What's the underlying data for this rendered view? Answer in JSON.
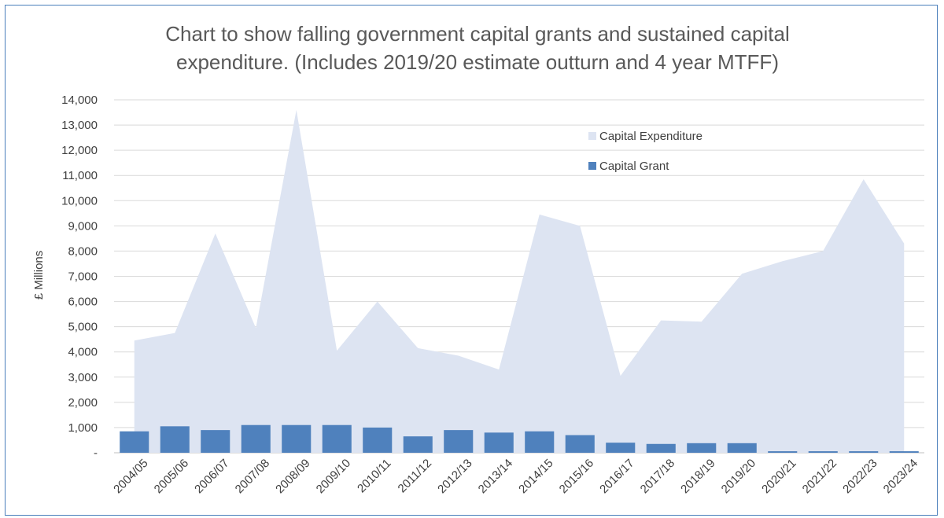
{
  "chart_data": {
    "type": "bar",
    "title_lines": [
      "Chart to show falling government capital grants and sustained capital",
      "expenditure. (Includes 2019/20 estimate outturn and 4 year MTFF)"
    ],
    "xlabel": "",
    "ylabel": "£ Millions",
    "ylim": [
      0,
      14000
    ],
    "yticks": [
      0,
      1000,
      2000,
      3000,
      4000,
      5000,
      6000,
      7000,
      8000,
      9000,
      10000,
      11000,
      12000,
      13000,
      14000
    ],
    "ytick_labels": [
      "-",
      "1,000",
      "2,000",
      "3,000",
      "4,000",
      "5,000",
      "6,000",
      "7,000",
      "8,000",
      "9,000",
      "10,000",
      "11,000",
      "12,000",
      "13,000",
      "14,000"
    ],
    "grid": true,
    "legend_position": "top-right",
    "categories": [
      "2004/05",
      "2005/06",
      "2006/07",
      "2007/08",
      "2008/09",
      "2009/10",
      "2010/11",
      "2011/12",
      "2012/13",
      "2013/14",
      "2014/15",
      "2015/16",
      "2016/17",
      "2017/18",
      "2018/19",
      "2019/20",
      "2020/21",
      "2021/22",
      "2022/23",
      "2023/24"
    ],
    "series": [
      {
        "name": "Capital Expenditure",
        "kind": "area",
        "color": "#dde4f2",
        "values": [
          4450,
          4750,
          8700,
          4950,
          13600,
          4050,
          6000,
          4150,
          3850,
          3300,
          9450,
          9000,
          3050,
          5250,
          5200,
          7100,
          7600,
          8000,
          10850,
          8300
        ]
      },
      {
        "name": "Capital Grant",
        "kind": "bar",
        "color": "#4f81bd",
        "values": [
          850,
          1050,
          900,
          1100,
          1100,
          1100,
          1000,
          650,
          900,
          800,
          850,
          700,
          400,
          350,
          380,
          380,
          60,
          60,
          60,
          60
        ]
      }
    ]
  }
}
